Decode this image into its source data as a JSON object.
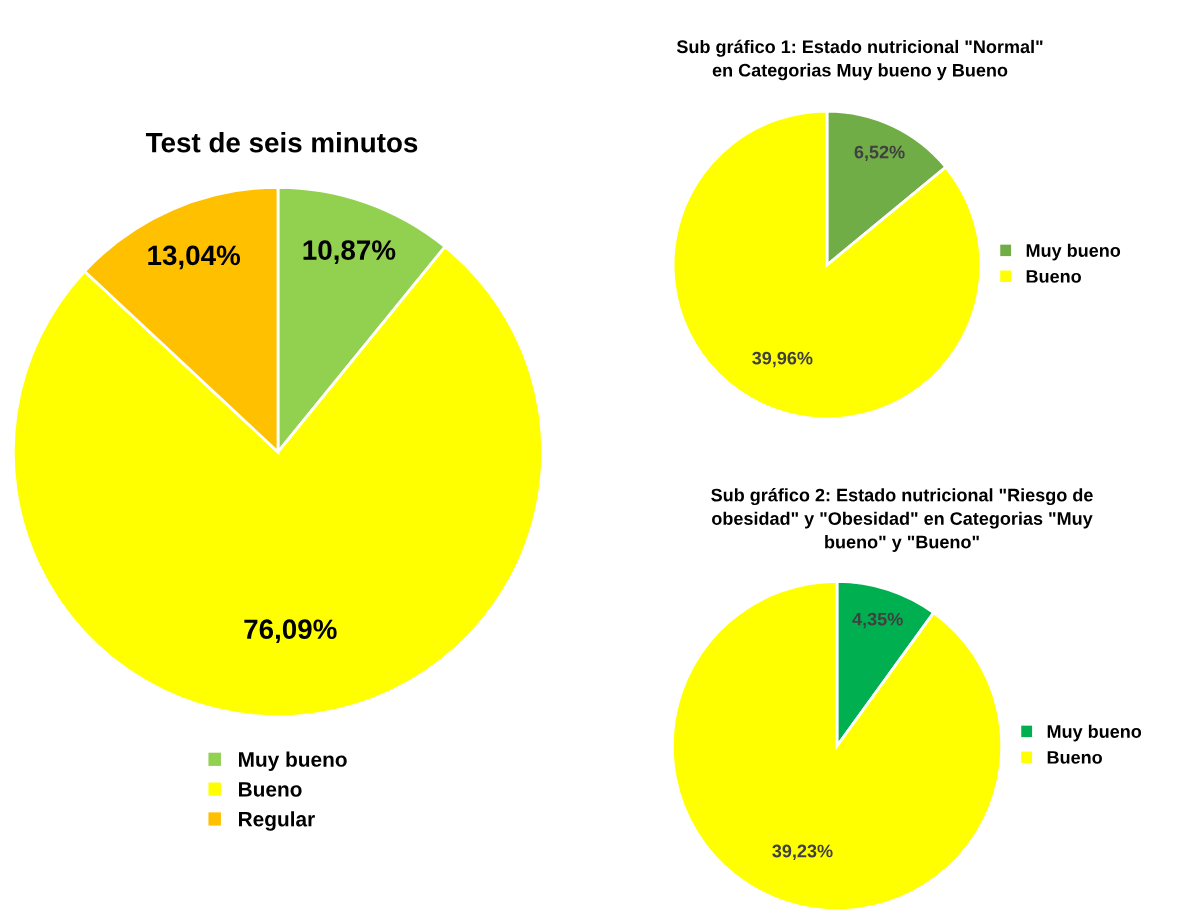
{
  "chart_data": [
    {
      "type": "pie",
      "title": "Test de seis minutos",
      "categories": [
        "Muy bueno",
        "Bueno",
        "Regular"
      ],
      "values": [
        10.87,
        76.09,
        13.04
      ],
      "colors": [
        "#92d050",
        "#ffff00",
        "#ffc000"
      ],
      "value_labels": [
        "10,87%",
        "76,09%",
        "13,04%"
      ],
      "legend": "bottom"
    },
    {
      "type": "pie",
      "title": "Sub gráfico 1: Estado nutricional \"Normal\"\nen Categorias Muy bueno y Bueno",
      "categories": [
        "Muy bueno",
        "Bueno"
      ],
      "values": [
        6.52,
        39.96
      ],
      "colors": [
        "#70ad47",
        "#ffff00"
      ],
      "value_labels": [
        "6,52%",
        "39,96%"
      ],
      "legend": "right"
    },
    {
      "type": "pie",
      "title": "Sub gráfico 2: Estado nutricional \"Riesgo de\nobesidad\" y \"Obesidad\" en Categorias \"Muy\nbueno\" y \"Bueno\"",
      "categories": [
        "Muy bueno",
        "Bueno"
      ],
      "values": [
        4.35,
        39.23
      ],
      "colors": [
        "#00b050",
        "#ffff00"
      ],
      "value_labels": [
        "4,35%",
        "39,23%"
      ],
      "legend": "right"
    }
  ]
}
